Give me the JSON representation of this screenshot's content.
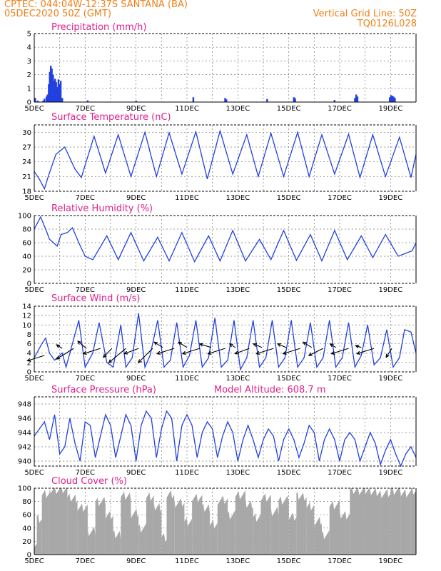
{
  "header": {
    "line1": "CPTEC:   044:04W-12:37S   SANTANA (BA)",
    "line2": "05DEC2020 50Z (GMT)",
    "right1": "Vertical Grid Line: 50Z",
    "right2": "TQ0126L028"
  },
  "chart_data": [
    {
      "type": "bar",
      "title": "Precipitation (mm/h)",
      "ylim": [
        0,
        5
      ],
      "yticks": [
        0,
        1,
        2,
        3,
        4,
        5
      ],
      "xticks": [
        "5DEC",
        "7DEC",
        "9DEC",
        "11DEC",
        "13DEC",
        "15DEC",
        "17DEC",
        "19DEC"
      ],
      "color": "#2040e0",
      "bars": [
        [
          0.04,
          0.3
        ],
        [
          0.14,
          0.1
        ],
        [
          0.35,
          0.1
        ],
        [
          0.4,
          0.25
        ],
        [
          0.48,
          0.4
        ],
        [
          0.52,
          0.55
        ],
        [
          0.57,
          1.3
        ],
        [
          0.61,
          2.2
        ],
        [
          0.65,
          2.65
        ],
        [
          0.69,
          2.45
        ],
        [
          0.74,
          2.0
        ],
        [
          0.78,
          1.55
        ],
        [
          0.82,
          1.7
        ],
        [
          0.86,
          1.45
        ],
        [
          0.91,
          1.1
        ],
        [
          0.95,
          1.65
        ],
        [
          1.0,
          1.3
        ],
        [
          1.04,
          1.55
        ],
        [
          1.1,
          0.3
        ],
        [
          2.1,
          0.12
        ],
        [
          4.0,
          0.1
        ],
        [
          6.25,
          0.35
        ],
        [
          7.5,
          0.3
        ],
        [
          7.55,
          0.2
        ],
        [
          9.15,
          0.22
        ],
        [
          10.2,
          0.35
        ],
        [
          10.25,
          0.28
        ],
        [
          11.8,
          0.15
        ],
        [
          12.6,
          0.3
        ],
        [
          12.65,
          0.55
        ],
        [
          12.7,
          0.4
        ],
        [
          13.97,
          0.35
        ],
        [
          14.02,
          0.5
        ],
        [
          14.07,
          0.45
        ],
        [
          14.12,
          0.4
        ],
        [
          14.17,
          0.3
        ]
      ]
    },
    {
      "type": "line",
      "title": "Surface Temperature (nC)",
      "ylim": [
        18,
        31.5
      ],
      "yticks": [
        18,
        21,
        24,
        27,
        30
      ],
      "xticks": [
        "5DEC",
        "7DEC",
        "9DEC",
        "11DEC",
        "13DEC",
        "15DEC",
        "17DEC",
        "19DEC"
      ],
      "x": [
        0,
        0.2,
        0.4,
        0.55,
        0.85,
        1.2,
        1.6,
        1.85,
        2.35,
        2.8,
        3.3,
        3.8,
        4.35,
        4.8,
        5.3,
        5.8,
        6.35,
        6.8,
        7.3,
        7.8,
        8.35,
        8.8,
        9.3,
        9.8,
        10.35,
        10.8,
        11.3,
        11.8,
        12.35,
        12.8,
        13.3,
        13.8,
        14.35,
        14.8,
        15.0
      ],
      "y": [
        22.0,
        20.5,
        18.5,
        21.0,
        25.5,
        27.0,
        22.5,
        20.8,
        29.2,
        21.7,
        29.5,
        21.0,
        30.0,
        21.0,
        29.9,
        21.5,
        30.1,
        20.5,
        30.3,
        21.5,
        29.5,
        21.0,
        29.8,
        21.0,
        30.0,
        21.0,
        29.5,
        21.5,
        29.6,
        20.8,
        29.5,
        21.0,
        29.0,
        20.8,
        25.5
      ]
    },
    {
      "type": "line",
      "title": "Relative Humidity (%)",
      "ylim": [
        0,
        100
      ],
      "yticks": [
        0,
        20,
        40,
        60,
        80,
        100
      ],
      "xticks": [
        "5DEC",
        "7DEC",
        "9DEC",
        "11DEC",
        "13DEC",
        "15DEC",
        "17DEC",
        "19DEC"
      ],
      "x": [
        0,
        0.25,
        0.45,
        0.6,
        0.75,
        0.9,
        1.05,
        1.3,
        1.5,
        1.75,
        2.0,
        2.3,
        2.85,
        3.3,
        3.8,
        4.3,
        4.85,
        5.3,
        5.8,
        6.3,
        6.85,
        7.3,
        7.8,
        8.3,
        8.85,
        9.3,
        9.8,
        10.3,
        10.85,
        11.3,
        11.8,
        12.3,
        12.85,
        13.3,
        13.8,
        14.3,
        14.85,
        15.0
      ],
      "y": [
        80,
        98,
        80,
        65,
        60,
        55,
        72,
        75,
        82,
        60,
        40,
        35,
        70,
        35,
        75,
        33,
        68,
        33,
        75,
        32,
        70,
        33,
        78,
        33,
        65,
        35,
        78,
        34,
        72,
        33,
        78,
        35,
        70,
        38,
        72,
        40,
        48,
        60
      ]
    },
    {
      "type": "line",
      "title": "Surface Wind (m/s)",
      "ylim": [
        0,
        14
      ],
      "yticks": [
        0,
        2,
        4,
        6,
        8,
        10,
        12,
        14
      ],
      "xticks": [
        "5DEC",
        "7DEC",
        "9DEC",
        "11DEC",
        "13DEC",
        "15DEC",
        "17DEC",
        "19DEC"
      ],
      "x": [
        0,
        0.3,
        0.45,
        0.6,
        0.8,
        1.1,
        1.25,
        1.5,
        1.75,
        2.0,
        2.3,
        2.55,
        2.85,
        3.1,
        3.4,
        3.6,
        3.85,
        4.1,
        4.35,
        4.55,
        4.85,
        5.1,
        5.35,
        5.6,
        5.85,
        6.1,
        6.35,
        6.6,
        6.85,
        7.1,
        7.35,
        7.6,
        7.85,
        8.1,
        8.35,
        8.6,
        8.85,
        9.1,
        9.35,
        9.6,
        9.85,
        10.1,
        10.35,
        10.6,
        10.85,
        11.1,
        11.35,
        11.6,
        11.85,
        12.1,
        12.35,
        12.6,
        12.85,
        13.1,
        13.35,
        13.6,
        13.85,
        14.1,
        14.35,
        14.55,
        14.8,
        15.0
      ],
      "y": [
        3.0,
        6.0,
        7.2,
        4.0,
        2.5,
        4.0,
        1.0,
        6.0,
        11.0,
        1.0,
        4.0,
        10.5,
        2.0,
        1.0,
        10.0,
        1.0,
        3.0,
        12.5,
        1.0,
        3.5,
        11.0,
        1.0,
        2.5,
        10.5,
        1.0,
        3.5,
        11.0,
        1.0,
        3.0,
        11.5,
        1.0,
        2.5,
        11.0,
        0.5,
        3.0,
        11.0,
        1.0,
        3.0,
        11.0,
        1.0,
        3.0,
        11.0,
        1.0,
        3.0,
        10.5,
        1.0,
        3.0,
        11.0,
        1.0,
        3.0,
        10.5,
        1.0,
        3.5,
        10.0,
        1.5,
        3.0,
        9.0,
        1.0,
        3.0,
        9.0,
        8.5,
        4.0
      ],
      "wind_vectors": [
        [
          0.4,
          3.5,
          -0.6,
          -0.3
        ],
        [
          1.1,
          5.0,
          -0.2,
          0.2
        ],
        [
          1.55,
          5.0,
          -0.6,
          -0.6
        ],
        [
          2.05,
          5.0,
          -0.3,
          0.4
        ],
        [
          2.6,
          5.0,
          -0.6,
          -0.3
        ],
        [
          3.05,
          5.0,
          -0.3,
          -0.5
        ],
        [
          3.6,
          5.0,
          -0.6,
          -0.8
        ],
        [
          4.1,
          5.0,
          -0.5,
          -0.3
        ],
        [
          4.65,
          5.0,
          -0.5,
          -0.8
        ],
        [
          5.05,
          5.2,
          -0.3,
          0.3
        ],
        [
          5.5,
          5.0,
          -0.6,
          -0.3
        ],
        [
          6.0,
          5.2,
          -0.3,
          0.3
        ],
        [
          6.5,
          5.0,
          -0.6,
          -0.3
        ],
        [
          6.95,
          5.2,
          -0.4,
          0.2
        ],
        [
          7.5,
          5.0,
          -0.6,
          -0.3
        ],
        [
          7.9,
          5.2,
          -0.2,
          0.2
        ],
        [
          8.45,
          5.0,
          -0.5,
          -0.3
        ],
        [
          8.95,
          5.2,
          -0.3,
          0.2
        ],
        [
          9.4,
          5.0,
          -0.6,
          -0.3
        ],
        [
          9.9,
          5.2,
          -0.3,
          0.2
        ],
        [
          10.45,
          5.0,
          -0.6,
          -0.3
        ],
        [
          10.9,
          5.2,
          -0.3,
          0.3
        ],
        [
          11.35,
          5.0,
          -0.5,
          -0.4
        ],
        [
          11.85,
          5.2,
          -0.2,
          0.2
        ],
        [
          12.35,
          5.0,
          -0.6,
          -0.3
        ],
        [
          12.85,
          5.2,
          -0.2,
          0.1
        ],
        [
          13.35,
          5.0,
          -0.6,
          -0.3
        ],
        [
          14.05,
          5.0,
          -0.2,
          -0.5
        ]
      ]
    },
    {
      "type": "line",
      "title": "Surface Pressure (hPa)",
      "subtitle": "Model Altitude: 608.7  m",
      "ylim": [
        939.3,
        949
      ],
      "yticks": [
        940,
        942,
        944,
        946,
        948
      ],
      "xticks": [
        "5DEC",
        "7DEC",
        "9DEC",
        "11DEC",
        "13DEC",
        "15DEC",
        "17DEC",
        "19DEC"
      ],
      "x": [
        0,
        0.2,
        0.4,
        0.6,
        0.8,
        1.0,
        1.2,
        1.4,
        1.6,
        1.8,
        2.0,
        2.2,
        2.4,
        2.6,
        2.8,
        3.0,
        3.2,
        3.4,
        3.6,
        3.8,
        4.0,
        4.2,
        4.4,
        4.6,
        4.8,
        5.0,
        5.2,
        5.4,
        5.6,
        5.8,
        6.0,
        6.2,
        6.4,
        6.6,
        6.8,
        7.0,
        7.2,
        7.4,
        7.6,
        7.8,
        8.0,
        8.2,
        8.4,
        8.6,
        8.8,
        9.0,
        9.2,
        9.4,
        9.6,
        9.8,
        10.0,
        10.2,
        10.4,
        10.6,
        10.8,
        11.0,
        11.2,
        11.4,
        11.6,
        11.8,
        12.0,
        12.2,
        12.4,
        12.6,
        12.8,
        13.0,
        13.2,
        13.4,
        13.6,
        13.8,
        14.0,
        14.2,
        14.4,
        14.6,
        14.8,
        15.0
      ],
      "y": [
        943.5,
        944.5,
        945.5,
        943.0,
        946.5,
        941.0,
        942.0,
        946.0,
        942.5,
        940.0,
        945.5,
        945.0,
        940.5,
        943.5,
        946.5,
        945.0,
        940.5,
        943.5,
        946.5,
        945.0,
        940.0,
        945.0,
        947.0,
        946.0,
        940.5,
        944.5,
        947.0,
        946.0,
        940.0,
        945.0,
        946.5,
        945.0,
        940.5,
        944.0,
        945.5,
        944.5,
        940.5,
        943.5,
        945.5,
        944.0,
        940.0,
        943.0,
        945.0,
        943.0,
        940.5,
        943.0,
        944.5,
        943.5,
        940.0,
        943.0,
        944.5,
        943.0,
        940.5,
        942.5,
        945.0,
        944.0,
        940.0,
        943.0,
        944.5,
        943.0,
        940.0,
        943.0,
        944.0,
        943.0,
        940.0,
        942.0,
        944.0,
        942.5,
        939.5,
        941.5,
        943.0,
        941.0,
        939.0,
        941.0,
        942.0,
        940.5
      ]
    },
    {
      "type": "bar",
      "title": "Cloud Cover (%)",
      "ylim": [
        0,
        100
      ],
      "yticks": [
        0,
        20,
        40,
        60,
        80,
        100
      ],
      "xticks": [
        "5DEC",
        "7DEC",
        "9DEC",
        "11DEC",
        "13DEC",
        "15DEC",
        "17DEC",
        "19DEC"
      ],
      "color": "#a8a8a8",
      "segments": [
        [
          0.0,
          0.1,
          18
        ],
        [
          0.1,
          0.3,
          55
        ],
        [
          0.3,
          0.6,
          92
        ],
        [
          0.6,
          1.3,
          98
        ],
        [
          1.3,
          1.7,
          85
        ],
        [
          1.7,
          2.1,
          70
        ],
        [
          2.1,
          2.4,
          35
        ],
        [
          2.4,
          2.8,
          80
        ],
        [
          2.8,
          3.1,
          60
        ],
        [
          3.1,
          3.4,
          30
        ],
        [
          3.4,
          3.8,
          88
        ],
        [
          3.8,
          4.1,
          62
        ],
        [
          4.1,
          4.4,
          40
        ],
        [
          4.4,
          4.7,
          88
        ],
        [
          4.7,
          5.0,
          72
        ],
        [
          5.0,
          5.2,
          25
        ],
        [
          5.2,
          5.5,
          90
        ],
        [
          5.5,
          5.9,
          78
        ],
        [
          5.9,
          6.2,
          50
        ],
        [
          6.2,
          6.6,
          86
        ],
        [
          6.6,
          6.9,
          70
        ],
        [
          6.9,
          7.2,
          45
        ],
        [
          7.2,
          7.6,
          82
        ],
        [
          7.6,
          7.9,
          60
        ],
        [
          7.9,
          8.3,
          90
        ],
        [
          8.3,
          8.6,
          76
        ],
        [
          8.6,
          8.9,
          55
        ],
        [
          8.9,
          9.3,
          85
        ],
        [
          9.3,
          9.6,
          65
        ],
        [
          9.6,
          10.0,
          82
        ],
        [
          10.0,
          10.3,
          58
        ],
        [
          10.3,
          10.7,
          88
        ],
        [
          10.7,
          11.0,
          72
        ],
        [
          11.0,
          11.3,
          50
        ],
        [
          11.3,
          11.6,
          30
        ],
        [
          11.6,
          12.0,
          75
        ],
        [
          12.0,
          12.4,
          60
        ],
        [
          12.4,
          13.0,
          97
        ],
        [
          13.0,
          13.6,
          95
        ],
        [
          13.6,
          14.0,
          92
        ],
        [
          14.0,
          14.4,
          97
        ],
        [
          14.4,
          14.8,
          93
        ],
        [
          14.8,
          15.0,
          96
        ]
      ]
    }
  ]
}
